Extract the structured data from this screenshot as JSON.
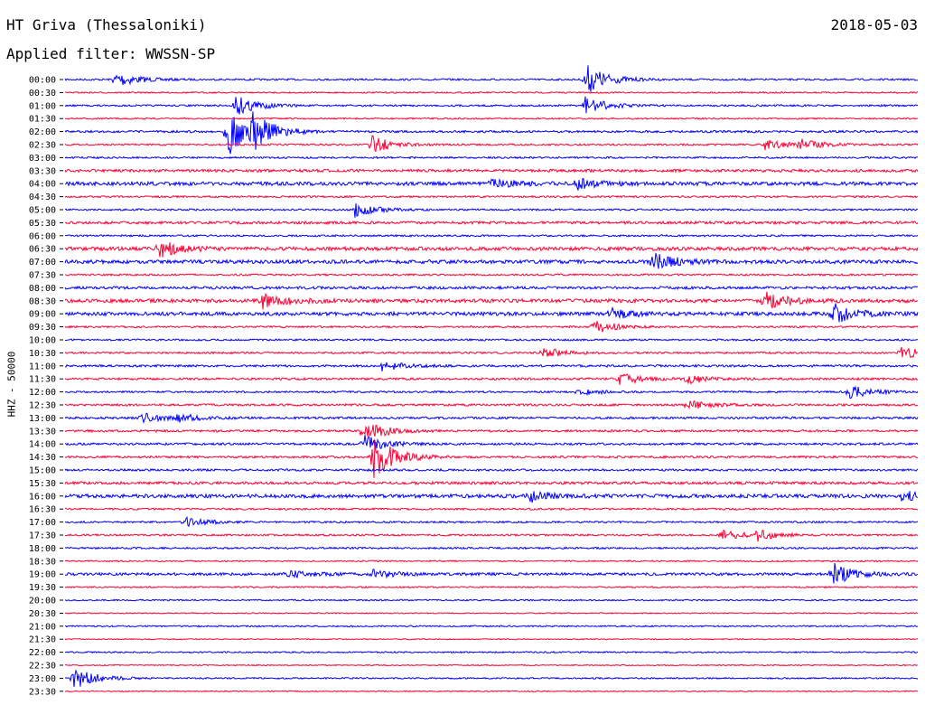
{
  "header": {
    "station": "HT Griva (Thessaloniki)",
    "date": "2018-05-03",
    "filter": "Applied filter: WWSSN-SP"
  },
  "chart_data": {
    "type": "line",
    "title": "HT Griva (Thessaloniki)",
    "ylabel": "HHZ - 50000",
    "colors": [
      "#0000ff",
      "#ff0033"
    ],
    "rows": [
      {
        "label": "00:00",
        "color": "#0000ff",
        "events": [
          [
            0.06,
            9
          ],
          [
            0.61,
            18
          ]
        ],
        "noise": 1.0
      },
      {
        "label": "00:30",
        "color": "#ff0033",
        "events": [],
        "noise": 0.8
      },
      {
        "label": "01:00",
        "color": "#0000ff",
        "events": [
          [
            0.2,
            12
          ],
          [
            0.61,
            10
          ]
        ],
        "noise": 1.0
      },
      {
        "label": "01:30",
        "color": "#ff0033",
        "events": [],
        "noise": 0.8
      },
      {
        "label": "02:00",
        "color": "#0000ff",
        "events": [
          [
            0.19,
            28
          ],
          [
            0.22,
            16
          ]
        ],
        "noise": 1.2
      },
      {
        "label": "02:30",
        "color": "#ff0033",
        "events": [
          [
            0.36,
            10
          ],
          [
            0.82,
            6
          ],
          [
            0.86,
            6
          ]
        ],
        "noise": 1.0
      },
      {
        "label": "03:00",
        "color": "#0000ff",
        "events": [],
        "noise": 1.0
      },
      {
        "label": "03:30",
        "color": "#ff0033",
        "events": [],
        "noise": 1.5
      },
      {
        "label": "04:00",
        "color": "#0000ff",
        "events": [
          [
            0.5,
            6
          ],
          [
            0.6,
            6
          ]
        ],
        "noise": 2.0
      },
      {
        "label": "04:30",
        "color": "#ff0033",
        "events": [],
        "noise": 1.0
      },
      {
        "label": "05:00",
        "color": "#0000ff",
        "events": [
          [
            0.34,
            8
          ]
        ],
        "noise": 1.0
      },
      {
        "label": "05:30",
        "color": "#ff0033",
        "events": [],
        "noise": 1.5
      },
      {
        "label": "06:00",
        "color": "#0000ff",
        "events": [],
        "noise": 1.0
      },
      {
        "label": "06:30",
        "color": "#ff0033",
        "events": [
          [
            0.11,
            10
          ]
        ],
        "noise": 2.0
      },
      {
        "label": "07:00",
        "color": "#0000ff",
        "events": [
          [
            0.69,
            12
          ]
        ],
        "noise": 2.0
      },
      {
        "label": "07:30",
        "color": "#ff0033",
        "events": [],
        "noise": 1.0
      },
      {
        "label": "08:00",
        "color": "#0000ff",
        "events": [],
        "noise": 1.5
      },
      {
        "label": "08:30",
        "color": "#ff0033",
        "events": [
          [
            0.23,
            12
          ],
          [
            0.82,
            10
          ]
        ],
        "noise": 2.0
      },
      {
        "label": "09:00",
        "color": "#0000ff",
        "events": [
          [
            0.64,
            6
          ],
          [
            0.9,
            12
          ]
        ],
        "noise": 2.0
      },
      {
        "label": "09:30",
        "color": "#ff0033",
        "events": [
          [
            0.62,
            8
          ]
        ],
        "noise": 1.0
      },
      {
        "label": "10:00",
        "color": "#0000ff",
        "events": [],
        "noise": 1.0
      },
      {
        "label": "10:30",
        "color": "#ff0033",
        "events": [
          [
            0.56,
            6
          ],
          [
            0.98,
            7
          ]
        ],
        "noise": 1.0
      },
      {
        "label": "11:00",
        "color": "#0000ff",
        "events": [
          [
            0.37,
            6
          ]
        ],
        "noise": 1.2
      },
      {
        "label": "11:30",
        "color": "#ff0033",
        "events": [
          [
            0.65,
            7
          ],
          [
            0.73,
            6
          ]
        ],
        "noise": 1.2
      },
      {
        "label": "12:00",
        "color": "#0000ff",
        "events": [
          [
            0.6,
            5
          ],
          [
            0.92,
            8
          ]
        ],
        "noise": 1.0
      },
      {
        "label": "12:30",
        "color": "#ff0033",
        "events": [
          [
            0.73,
            5
          ]
        ],
        "noise": 1.2
      },
      {
        "label": "13:00",
        "color": "#0000ff",
        "events": [
          [
            0.09,
            6
          ],
          [
            0.13,
            5
          ]
        ],
        "noise": 1.2
      },
      {
        "label": "13:30",
        "color": "#ff0033",
        "events": [
          [
            0.35,
            12
          ]
        ],
        "noise": 1.2
      },
      {
        "label": "14:00",
        "color": "#0000ff",
        "events": [
          [
            0.35,
            10
          ]
        ],
        "noise": 1.2
      },
      {
        "label": "14:30",
        "color": "#ff0033",
        "events": [
          [
            0.36,
            28
          ]
        ],
        "noise": 1.2
      },
      {
        "label": "15:00",
        "color": "#0000ff",
        "events": [],
        "noise": 1.2
      },
      {
        "label": "15:30",
        "color": "#ff0033",
        "events": [],
        "noise": 1.5
      },
      {
        "label": "16:00",
        "color": "#0000ff",
        "events": [
          [
            0.54,
            8
          ],
          [
            0.98,
            6
          ]
        ],
        "noise": 2.0
      },
      {
        "label": "16:30",
        "color": "#ff0033",
        "events": [],
        "noise": 1.0
      },
      {
        "label": "17:00",
        "color": "#0000ff",
        "events": [
          [
            0.14,
            6
          ]
        ],
        "noise": 1.0
      },
      {
        "label": "17:30",
        "color": "#ff0033",
        "events": [
          [
            0.77,
            6
          ],
          [
            0.81,
            6
          ]
        ],
        "noise": 1.0
      },
      {
        "label": "18:00",
        "color": "#0000ff",
        "events": [],
        "noise": 1.0
      },
      {
        "label": "18:30",
        "color": "#ff0033",
        "events": [],
        "noise": 0.8
      },
      {
        "label": "19:00",
        "color": "#0000ff",
        "events": [
          [
            0.26,
            5
          ],
          [
            0.36,
            5
          ],
          [
            0.9,
            12
          ]
        ],
        "noise": 1.5
      },
      {
        "label": "19:30",
        "color": "#ff0033",
        "events": [],
        "noise": 0.8
      },
      {
        "label": "20:00",
        "color": "#0000ff",
        "events": [],
        "noise": 0.8
      },
      {
        "label": "20:30",
        "color": "#ff0033",
        "events": [],
        "noise": 0.6
      },
      {
        "label": "21:00",
        "color": "#0000ff",
        "events": [],
        "noise": 0.8
      },
      {
        "label": "21:30",
        "color": "#ff0033",
        "events": [],
        "noise": 0.6
      },
      {
        "label": "22:00",
        "color": "#0000ff",
        "events": [],
        "noise": 0.8
      },
      {
        "label": "22:30",
        "color": "#ff0033",
        "events": [],
        "noise": 0.6
      },
      {
        "label": "23:00",
        "color": "#0000ff",
        "events": [
          [
            0.01,
            14
          ]
        ],
        "noise": 0.8
      },
      {
        "label": "23:30",
        "color": "#ff0033",
        "events": [],
        "noise": 0.6
      }
    ]
  }
}
